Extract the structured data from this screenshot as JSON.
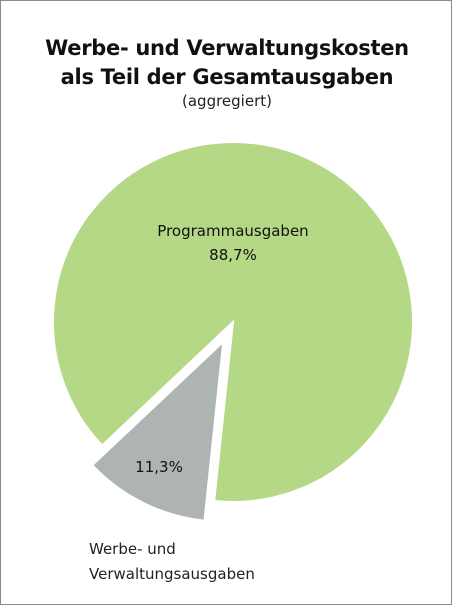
{
  "chart_data": {
    "type": "pie",
    "title": "Werbe- und Verwaltungskosten als Teil der Gesamtausgaben",
    "subtitle": "(aggregiert)",
    "categories": [
      "Programmausgaben",
      "Werbe- und Verwaltungsausgaben"
    ],
    "values": [
      88.7,
      11.3
    ],
    "value_labels": [
      "88,7%",
      "11,3%"
    ],
    "colors": [
      "#b5d886",
      "#aeb4b2"
    ]
  }
}
